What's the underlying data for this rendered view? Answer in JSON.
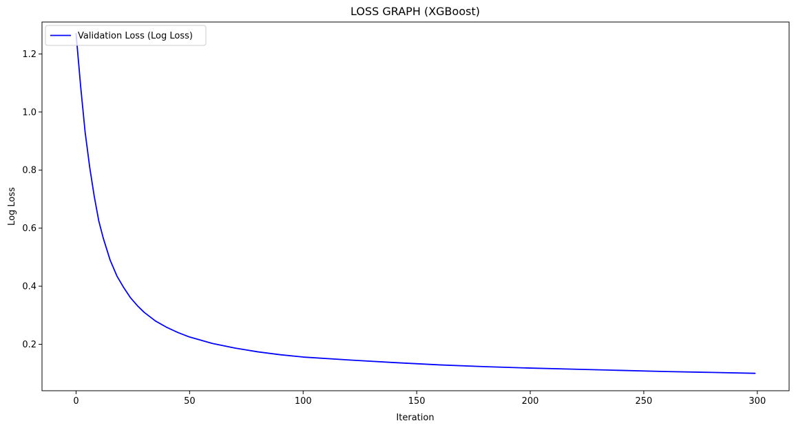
{
  "chart_data": {
    "type": "line",
    "title": "LOSS GRAPH (XGBoost)",
    "xlabel": "Iteration",
    "ylabel": "Log Loss",
    "xlim": [
      -15,
      314
    ],
    "ylim": [
      0.04,
      1.31
    ],
    "xticks": [
      0,
      50,
      100,
      150,
      200,
      250,
      300
    ],
    "yticks": [
      0.2,
      0.4,
      0.6,
      0.8,
      1.0,
      1.2
    ],
    "ytick_labels": [
      "0.2",
      "0.4",
      "0.6",
      "0.8",
      "1.0",
      "1.2"
    ],
    "grid": false,
    "legend_position": "top-left",
    "series": [
      {
        "name": "Validation Loss (Log Loss)",
        "color": "#0000ff",
        "x": [
          0,
          2,
          4,
          6,
          8,
          10,
          12,
          15,
          18,
          21,
          24,
          27,
          30,
          35,
          40,
          45,
          50,
          60,
          70,
          80,
          90,
          100,
          120,
          140,
          160,
          180,
          200,
          220,
          240,
          260,
          280,
          299
        ],
        "y": [
          1.27,
          1.09,
          0.93,
          0.81,
          0.71,
          0.625,
          0.565,
          0.49,
          0.435,
          0.395,
          0.36,
          0.333,
          0.31,
          0.28,
          0.258,
          0.24,
          0.225,
          0.203,
          0.187,
          0.174,
          0.164,
          0.156,
          0.146,
          0.137,
          0.129,
          0.123,
          0.118,
          0.114,
          0.11,
          0.106,
          0.103,
          0.1
        ]
      }
    ]
  }
}
